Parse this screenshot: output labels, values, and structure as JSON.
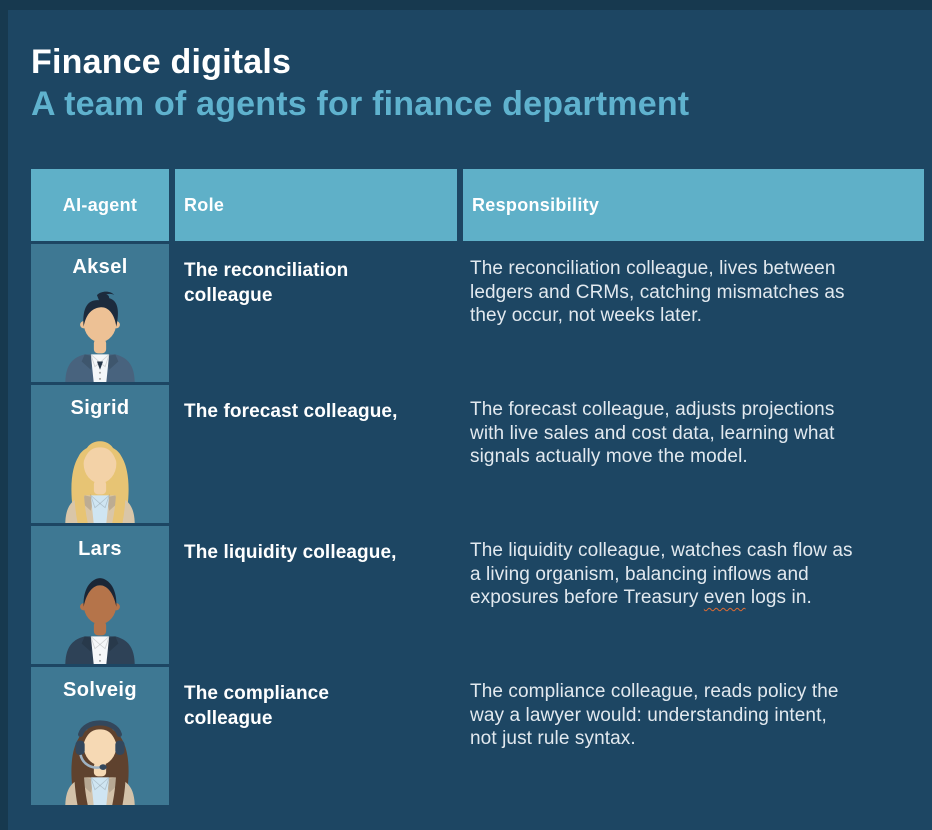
{
  "page": {
    "background_color": "#1d4663",
    "edge_color": "#17394f"
  },
  "header": {
    "title": "Finance digitals",
    "subtitle": "A team of agents for finance department",
    "title_color": "#ffffff",
    "subtitle_color": "#5fb2ce"
  },
  "table": {
    "header_bg": "#5fb0c8",
    "agent_cell_bg": "#3e7893",
    "squiggle_color": "#e06b33",
    "columns": [
      "AI-agent",
      "Role",
      "Responsibility"
    ],
    "rows": [
      {
        "name": "Aksel",
        "role": "The reconciliation\ncolleague",
        "responsibility": "The reconciliation colleague, lives between\nledgers and CRMs, catching mismatches as\nthey occur, not weeks later.",
        "avatar": {
          "style": "male-spiky",
          "tie": true,
          "headset": false,
          "skin": "#edc195",
          "hair": "#1c2b3d",
          "shirt": "#f4f7f9",
          "jacket": "#48637e"
        }
      },
      {
        "name": "Sigrid",
        "role": "The forecast colleague,",
        "responsibility": "The forecast colleague, adjusts projections\nwith live sales and cost data, learning what\nsignals actually move the model.",
        "avatar": {
          "style": "female-long",
          "tie": false,
          "headset": false,
          "skin": "#f3d2a7",
          "hair": "#e7c474",
          "shirt": "#cfe5f2",
          "jacket": "#d9c6a8"
        }
      },
      {
        "name": "Lars",
        "role": "The liquidity colleague,",
        "responsibility": "The liquidity colleague, watches cash flow as\na living organism, balancing inflows and\nexposures before Treasury even logs in.",
        "squiggle_word": "even",
        "avatar": {
          "style": "male-short",
          "tie": false,
          "headset": false,
          "skin": "#b5744a",
          "hair": "#1a2636",
          "shirt": "#f6f8fa",
          "jacket": "#2e4257"
        }
      },
      {
        "name": "Solveig",
        "role": "The compliance\ncolleague",
        "responsibility": "The compliance colleague, reads policy the\nway a lawyer would: understanding intent,\nnot just rule syntax.",
        "avatar": {
          "style": "female-long",
          "tie": false,
          "headset": true,
          "skin": "#f6d9b4",
          "hair": "#5f422e",
          "shirt": "#cfe5f2",
          "jacket": "#d3c2a9",
          "headset_color": "#33475c",
          "mic_color": "#9fb2c2"
        }
      }
    ]
  }
}
